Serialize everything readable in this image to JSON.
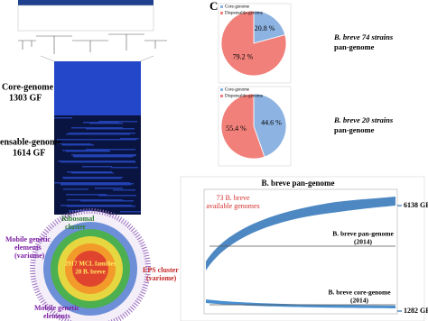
{
  "panel_label": "C",
  "chart_data": [
    {
      "type": "pie",
      "title_lines": [
        "B. breve 74 strains",
        "pan-genome"
      ],
      "categories": [
        "Core-genome",
        "Dispensable-genome"
      ],
      "values": [
        20.8,
        79.2
      ],
      "value_labels": [
        "20.8 %",
        "79.2 %"
      ],
      "colors": [
        "#8db3e2",
        "#f2807a"
      ]
    },
    {
      "type": "pie",
      "title_lines": [
        "B. breve 20 strains",
        "pan-genome"
      ],
      "categories": [
        "Core-genome",
        "Dispensable-genome"
      ],
      "values": [
        44.6,
        55.4
      ],
      "value_labels": [
        "44.6 %",
        "55.4 %"
      ],
      "colors": [
        "#8db3e2",
        "#f2807a"
      ]
    }
  ],
  "heatmap": {
    "core_label": "Core-genome",
    "core_count": "1303 GF",
    "dispensable_label": "ensable-genome",
    "dispensable_count": "1614 GF"
  },
  "circos": {
    "center_lines": [
      "2917 MCL families",
      "20 B. breve"
    ],
    "ribosomal": [
      "Ribosomal",
      "cluster"
    ],
    "mobile_top": [
      "Mobile genetic",
      "elements",
      "(variome)"
    ],
    "eps": [
      "EPS cluster",
      "(variome)"
    ],
    "mobile_bottom": [
      "Mobile genetic",
      "elements"
    ]
  },
  "pan_plot": {
    "title": "B. breve pan-genome",
    "annotation_lines": [
      "73 B. breve",
      "available genomes"
    ],
    "pan_count": "6138 GF",
    "core_count": "1282 GF",
    "pan_ref_lines": [
      "B. breve pan-genome",
      "(2014)"
    ],
    "core_ref_lines": [
      "B. breve core-genome",
      "(2014)"
    ]
  }
}
